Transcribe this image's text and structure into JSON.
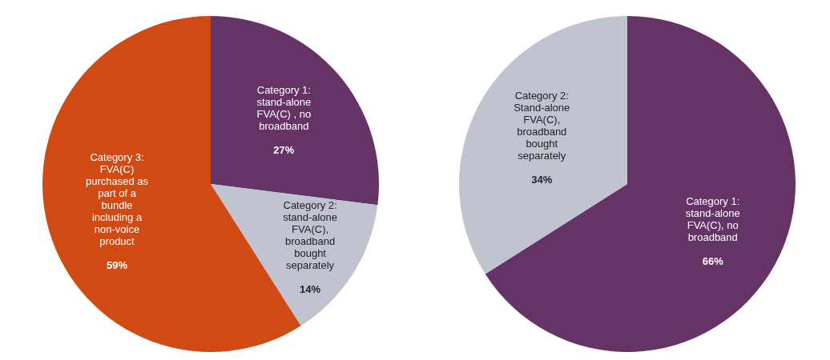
{
  "chart_data": [
    {
      "type": "pie",
      "categories": [
        "Category 1: stand-alone FVA(C) , no broadband",
        "Category 2: stand-alone FVA(C), broadband bought separately",
        "Category 3: FVA(C) purchased as part of a bundle including a non-voice product"
      ],
      "values": [
        27,
        14,
        59
      ],
      "value_labels": [
        "27%",
        "14%",
        "59%"
      ],
      "colors": [
        "#663366",
        "#c0c4d0",
        "#d04a14"
      ]
    },
    {
      "type": "pie",
      "categories": [
        "Category 1: stand-alone FVA(C), no broadband",
        "Category 2: Stand-alone FVA(C), broadband bought separately"
      ],
      "values": [
        66,
        34
      ],
      "value_labels": [
        "66%",
        "34%"
      ],
      "colors": [
        "#663366",
        "#c0c4d0"
      ]
    }
  ]
}
